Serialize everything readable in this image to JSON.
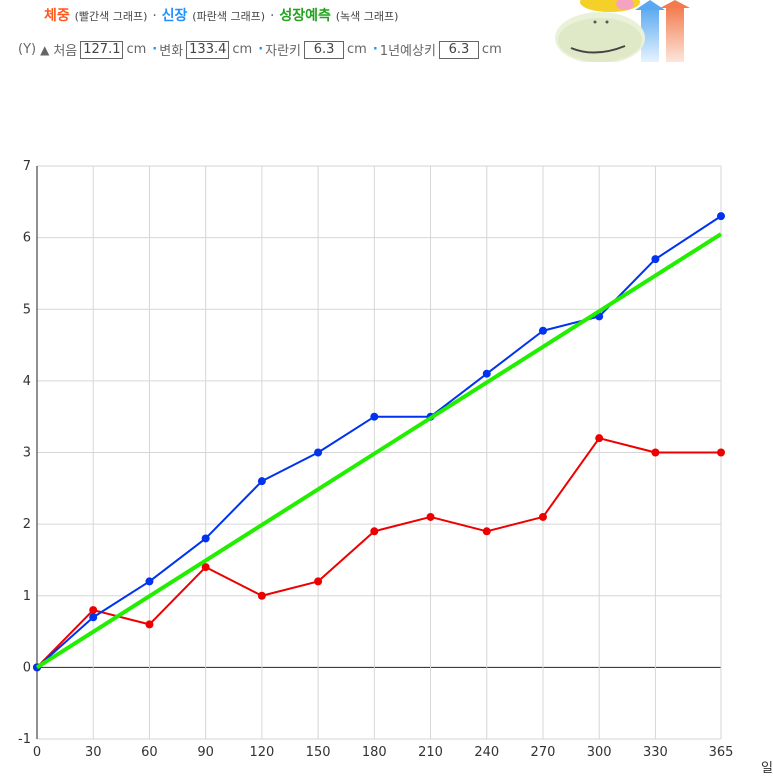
{
  "header": {
    "weight_title": "체중",
    "weight_note": "(빨간색 그래프)",
    "height_title": "신장",
    "height_note": "(파란색 그래프)",
    "predict_title": "성장예측",
    "predict_note": "(녹색 그래프)",
    "separator": "·"
  },
  "stats": {
    "y_label": "(Y)",
    "first_label": "처음",
    "first_value": "127.1",
    "change_label": "변화",
    "change_value": "133.4",
    "grown_label": "자란키",
    "grown_value": "6.3",
    "yearly_label": "1년예상키",
    "yearly_value": "6.3",
    "unit": "cm"
  },
  "chart_data": {
    "type": "line",
    "xlabel": "일",
    "ylabel": "",
    "x": [
      0,
      30,
      60,
      90,
      120,
      150,
      180,
      210,
      240,
      270,
      300,
      330,
      365
    ],
    "ylim": [
      -1,
      7
    ],
    "xlim": [
      0,
      365
    ],
    "yticks": [
      -1,
      0,
      1,
      2,
      3,
      4,
      5,
      6,
      7
    ],
    "xticks": [
      0,
      30,
      60,
      90,
      120,
      150,
      180,
      210,
      240,
      270,
      300,
      330,
      365
    ],
    "grid": true,
    "series": [
      {
        "color": "#ee0000",
        "markers": true,
        "values": [
          0,
          0.8,
          0.6,
          1.4,
          1.0,
          1.2,
          1.9,
          2.1,
          1.9,
          2.1,
          3.2,
          3.0,
          3.0
        ]
      },
      {
        "color": "#0033ee",
        "markers": true,
        "values": [
          0,
          0.7,
          1.2,
          1.8,
          2.6,
          3.0,
          3.5,
          3.5,
          4.1,
          4.7,
          4.9,
          5.7,
          6.3
        ]
      },
      {
        "color": "#22ee00",
        "markers": false,
        "x": [
          0,
          365
        ],
        "values": [
          0,
          6.05
        ]
      }
    ]
  }
}
